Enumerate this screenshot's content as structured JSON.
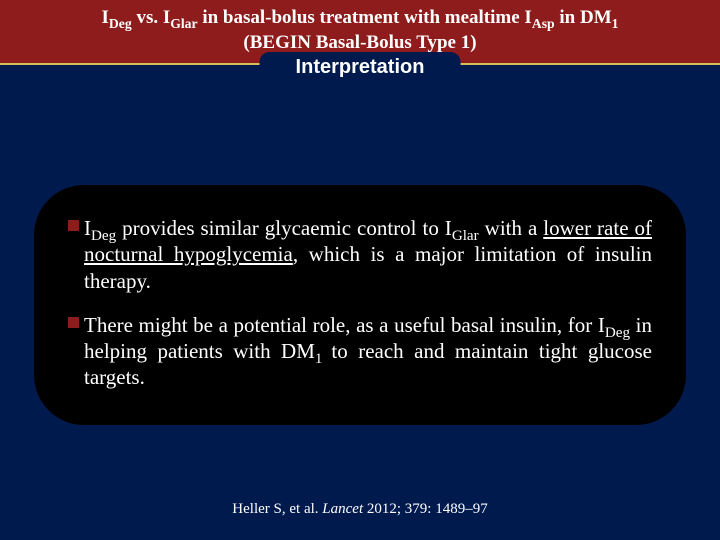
{
  "header": {
    "title_html": "I<sub>Deg</sub> vs. I<sub>Glar</sub> in basal-bolus treatment with mealtime I<sub>Asp</sub> in DM<sub>1</sub><br>(BEGIN Basal-Bolus Type 1)",
    "pill": "Interpretation",
    "bg_color": "#8f1c1c",
    "border_color": "#d4c05a"
  },
  "body": {
    "bg_color": "#001a4d",
    "box_bg": "#000000",
    "text_color": "#ffffff",
    "bullet_color": "#8f1c1c",
    "font_size_pt": 16,
    "bullets": [
      "I<sub>Deg</sub> provides similar glycaemic control to I<sub>Glar</sub> with a <span class=\"u\">lower rate of nocturnal hypoglycemia</span>, which is a major limitation of insulin therapy.",
      "There might be a potential role, as a useful basal insulin, for I<sub>Deg</sub> in helping patients with DM<sub>1 </sub>to reach and maintain tight glucose targets."
    ]
  },
  "citation_html": "Heller S, et al. <span class=\"it\">Lancet</span> 2012; 379: 1489–97"
}
